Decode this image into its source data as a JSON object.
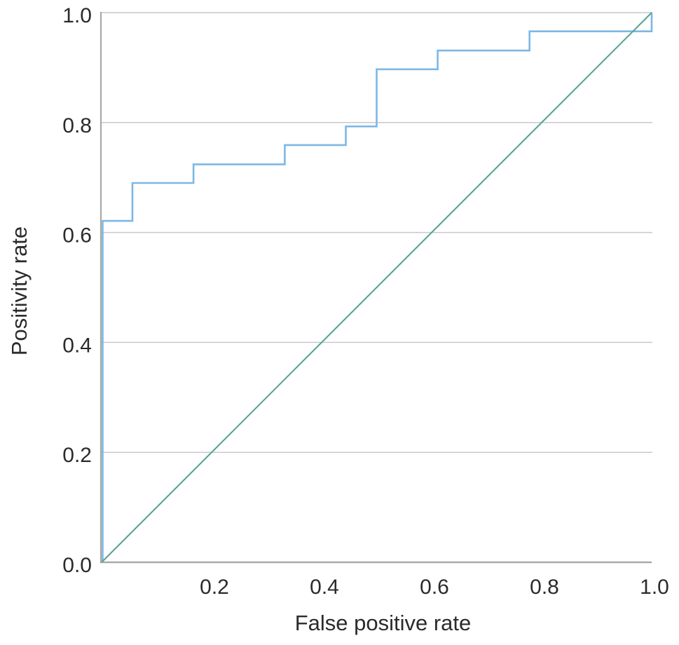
{
  "chart_data": {
    "type": "line",
    "subtype": "roc-step-chart",
    "title": "",
    "xlabel": "False positive rate",
    "ylabel": "Positivity rate",
    "xlim": [
      0,
      1
    ],
    "ylim": [
      0,
      1
    ],
    "grid": "horizontal-only",
    "legend": "none",
    "x_ticks": [
      {
        "value": 0.2,
        "label": "0.2"
      },
      {
        "value": 0.4,
        "label": "0.4"
      },
      {
        "value": 0.6,
        "label": "0.6"
      },
      {
        "value": 0.8,
        "label": "0.8"
      },
      {
        "value": 1.0,
        "label": "1.0"
      }
    ],
    "y_ticks": [
      {
        "value": 0.0,
        "label": "0.0"
      },
      {
        "value": 0.2,
        "label": "0.2"
      },
      {
        "value": 0.4,
        "label": "0.4"
      },
      {
        "value": 0.6,
        "label": "0.6"
      },
      {
        "value": 0.8,
        "label": "0.8"
      },
      {
        "value": 1.0,
        "label": "1.0"
      }
    ],
    "series": [
      {
        "name": "roc-step-curve",
        "draw": "polyline",
        "color": "#7db7e5",
        "stroke_width": 2.6,
        "points": [
          [
            0,
            0
          ],
          [
            0,
            0.621
          ],
          [
            0.056,
            0.621
          ],
          [
            0.056,
            0.69
          ],
          [
            0.167,
            0.69
          ],
          [
            0.167,
            0.724
          ],
          [
            0.333,
            0.724
          ],
          [
            0.333,
            0.759
          ],
          [
            0.444,
            0.759
          ],
          [
            0.444,
            0.793
          ],
          [
            0.5,
            0.793
          ],
          [
            0.5,
            0.897
          ],
          [
            0.611,
            0.897
          ],
          [
            0.611,
            0.931
          ],
          [
            0.778,
            0.931
          ],
          [
            0.778,
            0.966
          ],
          [
            1,
            0.966
          ],
          [
            1,
            1
          ]
        ]
      },
      {
        "name": "reference-diagonal",
        "draw": "polyline",
        "color": "#57a496",
        "stroke_width": 2.1,
        "points": [
          [
            0,
            0
          ],
          [
            1,
            1
          ]
        ]
      }
    ],
    "colors": {
      "grid_line": "#c9c9c9",
      "axis_line": "#a9a9a9",
      "text": "#2b2b2b",
      "background": "#ffffff"
    }
  }
}
